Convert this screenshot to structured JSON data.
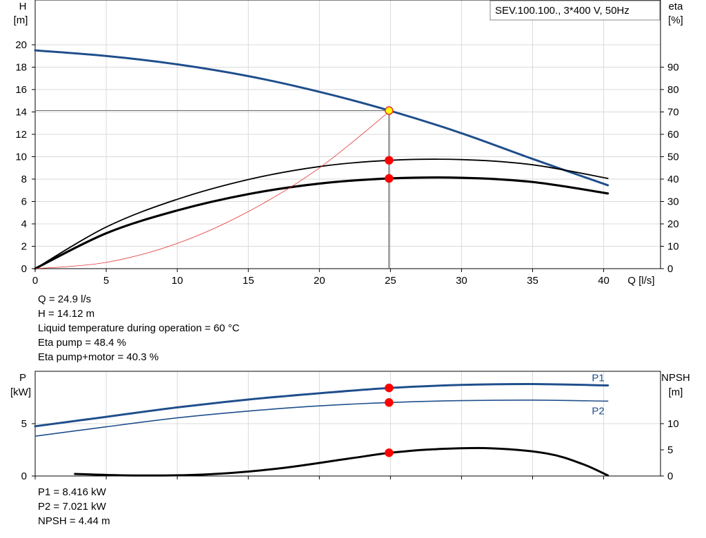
{
  "chart_data": [
    {
      "type": "line",
      "title": "SEV.100.100., 3*400 V, 50Hz",
      "xlabel": "Q [l/s]",
      "ylabel_left": [
        "H",
        "[m]"
      ],
      "ylabel_right": [
        "eta",
        "[%]"
      ],
      "xlim": [
        0,
        44
      ],
      "ylim_left": [
        0,
        24
      ],
      "ylim_right": [
        0,
        120
      ],
      "x_ticks": [
        0,
        5,
        10,
        15,
        20,
        25,
        30,
        35,
        40
      ],
      "y_ticks_left": [
        0,
        2,
        4,
        6,
        8,
        10,
        12,
        14,
        16,
        18,
        20
      ],
      "y_ticks_right": [
        0,
        10,
        20,
        30,
        40,
        50,
        60,
        70,
        80,
        90
      ],
      "grid": true,
      "series": [
        {
          "axis": "left",
          "color": "#1f4e8c",
          "width": 3,
          "x": [
            0,
            5,
            10,
            15,
            20,
            25,
            30,
            35,
            40.3
          ],
          "y": [
            19.5,
            19.0,
            18.25,
            17.2,
            15.8,
            14.1,
            12.1,
            9.8,
            7.45
          ]
        },
        {
          "axis": "right",
          "color": "#000000",
          "width": 1.8,
          "x": [
            0,
            5,
            10,
            15,
            20,
            25,
            30,
            35,
            40.3
          ],
          "y": [
            0,
            18.6,
            31.0,
            39.8,
            45.6,
            48.4,
            48.7,
            46.4,
            40.3
          ]
        },
        {
          "axis": "right",
          "color": "#000000",
          "width": 3.2,
          "x": [
            0,
            5,
            10,
            15,
            20,
            25,
            30,
            35,
            40.3
          ],
          "y": [
            0,
            15.8,
            26.0,
            33.3,
            38.0,
            40.3,
            40.6,
            38.7,
            33.6
          ]
        },
        {
          "axis": "left",
          "color": "#e53030",
          "width": 0.8,
          "x": [
            0,
            5,
            10,
            15,
            20,
            25
          ],
          "y": [
            0,
            0.56,
            2.26,
            5.1,
            9.0,
            14.12
          ]
        }
      ],
      "reference_lines": {
        "x": 24.9,
        "y": 14.12
      },
      "markers": [
        {
          "axis": "left",
          "x": 24.9,
          "y": 14.12,
          "fill": "#ffff00",
          "stroke": "#e53030"
        },
        {
          "axis": "right",
          "x": 24.9,
          "y": 48.4,
          "fill": "#ff0000",
          "stroke": "#ff0000"
        },
        {
          "axis": "right",
          "x": 24.9,
          "y": 40.3,
          "fill": "#ff0000",
          "stroke": "#ff0000"
        }
      ]
    },
    {
      "type": "line",
      "ylabel_left": [
        "P",
        "[kW]"
      ],
      "ylabel_right": [
        "NPSH",
        "[m]"
      ],
      "xlim": [
        0,
        44
      ],
      "ylim_left": [
        0,
        10
      ],
      "ylim_right": [
        0,
        20
      ],
      "y_ticks_left": [
        0,
        5
      ],
      "y_ticks_right": [
        0,
        5,
        10
      ],
      "grid": true,
      "series": [
        {
          "name": "P1",
          "axis": "left",
          "color": "#1f4e8c",
          "width": 3,
          "x": [
            0,
            5,
            10,
            15,
            20,
            25,
            30,
            35,
            40.3
          ],
          "y": [
            4.75,
            5.65,
            6.55,
            7.3,
            7.9,
            8.416,
            8.7,
            8.78,
            8.65
          ]
        },
        {
          "name": "P2",
          "axis": "left",
          "color": "#1f4e8c",
          "width": 1.6,
          "x": [
            0,
            5,
            10,
            15,
            20,
            25,
            30,
            35,
            40.3
          ],
          "y": [
            3.8,
            4.7,
            5.55,
            6.2,
            6.7,
            7.021,
            7.2,
            7.25,
            7.15
          ]
        },
        {
          "axis": "right",
          "color": "#000000",
          "width": 3,
          "x": [
            2.8,
            7,
            12,
            17,
            22,
            25,
            28,
            32,
            36,
            38.5,
            40.3
          ],
          "y": [
            0.4,
            0.1,
            0.3,
            1.4,
            3.3,
            4.44,
            5.1,
            5.3,
            4.3,
            2.3,
            0.1
          ]
        }
      ],
      "markers": [
        {
          "axis": "left",
          "x": 24.9,
          "y": 8.416,
          "fill": "#ff0000",
          "stroke": "#ff0000"
        },
        {
          "axis": "left",
          "x": 24.9,
          "y": 7.021,
          "fill": "#ff0000",
          "stroke": "#ff0000"
        },
        {
          "axis": "right",
          "x": 24.9,
          "y": 4.44,
          "fill": "#ff0000",
          "stroke": "#ff0000"
        }
      ]
    }
  ],
  "info_top": [
    "Q = 24.9 l/s",
    "H = 14.12 m",
    "Liquid temperature during operation = 60 °C",
    "Eta pump = 48.4 %",
    "Eta pump+motor = 40.3 %"
  ],
  "info_bottom": [
    "P1 = 8.416 kW",
    "P2 = 7.021 kW",
    "NPSH = 4.44 m"
  ]
}
